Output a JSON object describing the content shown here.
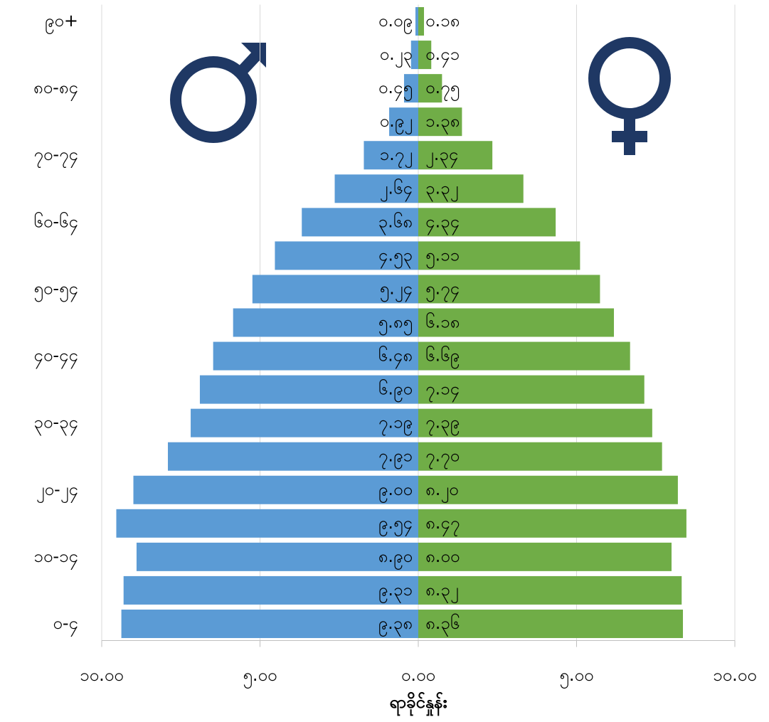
{
  "chart_data": {
    "type": "bar",
    "orientation": "horizontal",
    "stacked": true,
    "x_label": "ရာခိုင်နှုန်း",
    "categories": [
      "၀-၄",
      null,
      "၁၀-၁၄",
      null,
      "၂၀-၂၄",
      null,
      "၃၀-၃၄",
      null,
      "၄၀-၄၄",
      null,
      "၅၀-၅၄",
      null,
      "၆၀-၆၄",
      null,
      "၇၀-၇၄",
      null,
      "၈၀-၈၄",
      null,
      "၉၀+"
    ],
    "series": [
      {
        "color": "#5b9bd5",
        "values": [
          -9.38,
          -9.31,
          -8.9,
          -9.54,
          -9.0,
          -7.91,
          -7.19,
          -6.9,
          -6.48,
          -5.85,
          -5.24,
          -4.53,
          -3.68,
          -2.64,
          -1.72,
          -0.92,
          -0.45,
          -0.23,
          -0.09
        ],
        "value_labels": [
          "၉.၃၈",
          "၉.၃၁",
          "၈.၉၀",
          "၉.၅၄",
          "၉.၀၀",
          "၇.၉၁",
          "၇.၁၉",
          "၆.၉၀",
          "၆.၄၈",
          "၅.၈၅",
          "၅.၂၄",
          "၄.၅၃",
          "၃.၆၈",
          "၂.၆၄",
          "၁.၇၂",
          "၀.၉၂",
          "၀.၄၅",
          "၀.၂၃",
          "၀.၀၉"
        ]
      },
      {
        "color": "#70ad47",
        "values": [
          8.36,
          8.32,
          8.0,
          8.47,
          8.2,
          7.7,
          7.39,
          7.14,
          6.69,
          6.18,
          5.74,
          5.11,
          4.34,
          3.32,
          2.34,
          1.38,
          0.75,
          0.41,
          0.18
        ],
        "value_labels": [
          "၈.၃၆",
          "၈.၃၂",
          "၈.၀၀",
          "၈.၄၇",
          "၈.၂၀",
          "၇.၇၀",
          "၇.၃၉",
          "၇.၁၄",
          "၆.၆၉",
          "၆.၁၈",
          "၅.၇၄",
          "၅.၁၁",
          "၄.၃၄",
          "၃.၃၂",
          "၂.၃၄",
          "၁.၃၈",
          "၀.၇၅",
          "၀.၄၁",
          "၀.၁၈"
        ]
      }
    ],
    "xlim": [
      -10,
      10
    ],
    "xticks": [
      {
        "value": -10,
        "label": "၁၀.၀၀"
      },
      {
        "value": -5,
        "label": "၅.၀၀"
      },
      {
        "value": 0,
        "label": "၀.၀၀"
      },
      {
        "value": 5,
        "label": "၅.၀၀"
      },
      {
        "value": 10,
        "label": "၁၀.၀၀"
      }
    ],
    "grid": true
  }
}
